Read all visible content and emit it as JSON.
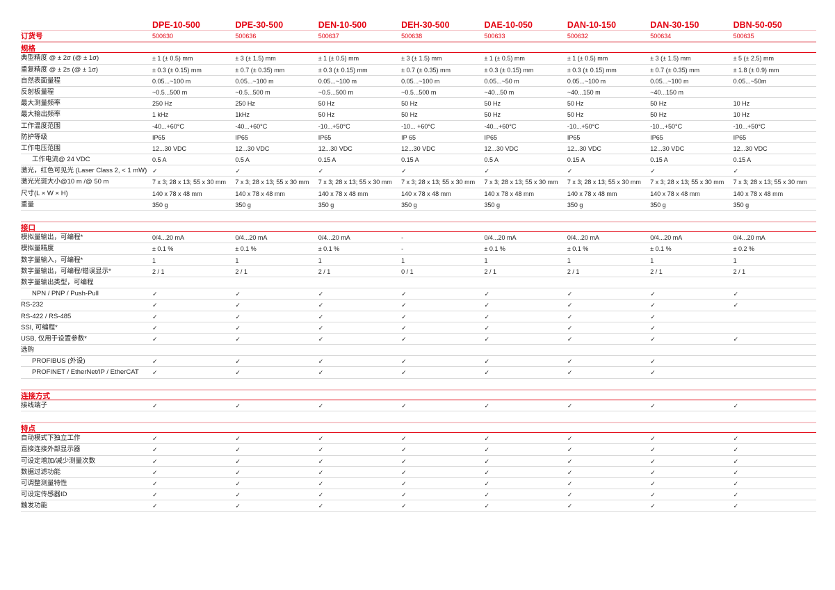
{
  "models": [
    "DPE-10-500",
    "DPE-30-500",
    "DEN-10-500",
    "DEH-30-500",
    "DAE-10-050",
    "DAN-10-150",
    "DAN-30-150",
    "DBN-50-050"
  ],
  "order": {
    "label": "订货号",
    "values": [
      "500630",
      "500636",
      "500637",
      "500638",
      "500633",
      "500632",
      "500634",
      "500635"
    ]
  },
  "sections": [
    {
      "title": "规格",
      "rows": [
        {
          "label": "典型精度 @ ± 2σ (@ ± 1σ)",
          "values": [
            "± 1 (± 0.5) mm",
            "± 3 (± 1.5) mm",
            "± 1 (± 0.5) mm",
            "± 3 (± 1.5) mm",
            "± 1 (± 0.5) mm",
            "± 1 (± 0.5) mm",
            "± 3 (± 1.5) mm",
            "± 5 (± 2.5) mm"
          ]
        },
        {
          "label": "重复精度 @ ± 2s (@ ± 1σ)",
          "values": [
            "± 0.3 (± 0.15) mm",
            "± 0.7 (± 0.35) mm",
            "± 0.3 (± 0.15) mm",
            "± 0.7 (± 0.35) mm",
            "± 0.3 (± 0.15) mm",
            "± 0.3 (± 0.15) mm",
            "± 0.7 (± 0.35) mm",
            "± 1.8 (± 0.9) mm"
          ]
        },
        {
          "label": "自然表面量程",
          "values": [
            "0.05...~100 m",
            "0.05...~100 m",
            "0.05...~100 m",
            "0.05...~100 m",
            "0.05...~50 m",
            "0.05...~100 m",
            "0.05...~100 m",
            "0.05...~50m"
          ]
        },
        {
          "label": "反射板量程",
          "values": [
            " ~0.5...500 m",
            " ~0.5...500 m",
            " ~0.5...500 m",
            " ~0.5...500 m",
            "~40...50 m",
            "~40...150 m",
            "~40...150 m",
            ""
          ]
        },
        {
          "label": "最大测量频率",
          "values": [
            "250 Hz",
            "250 Hz",
            "50 Hz",
            "50 Hz",
            "50 Hz",
            "50 Hz",
            "50 Hz",
            "10 Hz"
          ]
        },
        {
          "label": "最大输出频率",
          "values": [
            "1 kHz",
            "1kHz",
            "50 Hz",
            "50 Hz",
            "50 Hz",
            "50 Hz",
            "50 Hz",
            "10 Hz"
          ]
        },
        {
          "label": "工作温度范围",
          "values": [
            "-40...+60°C",
            "-40...+60°C",
            "-10...+50°C",
            "-10... +60°C",
            "-40...+60°C",
            "-10...+50°C",
            "-10...+50°C",
            "-10...+50°C"
          ]
        },
        {
          "label": "防护等级",
          "values": [
            "IP65",
            "IP65",
            "IP65",
            "IP 65",
            "IP65",
            "IP65",
            "IP65",
            "IP65"
          ]
        },
        {
          "label": "工作电压范围",
          "values": [
            "12...30 VDC",
            "12...30 VDC",
            "12...30 VDC",
            "12...30 VDC",
            "12...30 VDC",
            "12...30 VDC",
            "12...30 VDC",
            "12...30 VDC"
          ]
        },
        {
          "label": "工作电流@ 24 VDC",
          "indent": true,
          "values": [
            "0.5 A",
            "0.5 A",
            "0.15 A",
            "0.15 A",
            "0.5 A",
            "0.15 A",
            "0.15 A",
            "0.15 A"
          ]
        },
        {
          "label": "激光，红色可见光 (Laser Class 2, < 1 mW)",
          "values": [
            "✓",
            "✓",
            "✓",
            "✓",
            "✓",
            "✓",
            "✓",
            "✓"
          ]
        },
        {
          "label": "激光光斑大小@10 m /@ 50 m",
          "values": [
            "7 x 3; 28 x 13; 55 x 30 mm",
            "7 x 3; 28 x 13; 55 x 30 mm",
            "7 x 3; 28 x 13; 55 x 30 mm",
            "7 x 3; 28 x 13; 55 x 30 mm",
            "7 x 3; 28 x 13; 55 x 30 mm",
            "7 x 3; 28 x 13; 55 x 30 mm",
            "7 x 3; 28 x 13; 55 x 30 mm",
            "7 x 3; 28 x 13; 55 x 30 mm"
          ]
        },
        {
          "label": "尺寸(L × W × H)",
          "values": [
            "140 x 78 x 48 mm",
            "140 x 78 x 48 mm",
            "140 x 78 x 48 mm",
            "140 x 78 x 48 mm",
            "140 x 78 x 48 mm",
            "140 x 78 x 48 mm",
            "140 x 78 x 48 mm",
            "140 x 78 x 48 mm"
          ]
        },
        {
          "label": "重量",
          "values": [
            "350 g",
            "350 g",
            "350 g",
            "350 g",
            "350 g",
            "350 g",
            "350 g",
            "350 g"
          ]
        }
      ]
    },
    {
      "title": "接口",
      "rows": [
        {
          "label": "模拟量输出，可编程*",
          "values": [
            "0/4...20 mA",
            "0/4...20 mA",
            "0/4...20 mA",
            "-",
            "0/4...20 mA",
            "0/4...20 mA",
            "0/4...20 mA",
            "0/4...20 mA"
          ]
        },
        {
          "label": "模拟量精度",
          "values": [
            "± 0.1 %",
            "± 0.1 %",
            "± 0.1 %",
            "-",
            "± 0.1 %",
            "± 0.1 %",
            "± 0.1 %",
            "± 0.2 %"
          ]
        },
        {
          "label": "数字量输入，可编程*",
          "values": [
            "1",
            "1",
            "1",
            "1",
            "1",
            "1",
            "1",
            "1"
          ]
        },
        {
          "label": "数字量输出，可编程/错误显示*",
          "values": [
            "2 / 1",
            "2 / 1",
            "2 / 1",
            "0 / 1",
            "2 / 1",
            "2 / 1",
            "2 / 1",
            "2 / 1"
          ]
        },
        {
          "label": "数字量输出类型，可编程",
          "values": [
            "",
            "",
            "",
            "",
            "",
            "",
            "",
            ""
          ]
        },
        {
          "label": "NPN / PNP / Push-Pull",
          "indent": true,
          "values": [
            "✓",
            "✓",
            "✓",
            "✓",
            "✓",
            "✓",
            "✓",
            "✓"
          ]
        },
        {
          "label": "RS-232",
          "values": [
            "✓",
            "✓",
            "✓",
            "✓",
            "✓",
            "✓",
            "✓",
            "✓"
          ]
        },
        {
          "label": "RS-422 / RS-485",
          "values": [
            "✓",
            "✓",
            "✓",
            "✓",
            "✓",
            "✓",
            "✓",
            ""
          ]
        },
        {
          "label": "SSI, 可编程*",
          "values": [
            "✓",
            "✓",
            "✓",
            "✓",
            "✓",
            "✓",
            "✓",
            ""
          ]
        },
        {
          "label": "USB, 仅用于设置参数*",
          "values": [
            "✓",
            "✓",
            "✓",
            "✓",
            "✓",
            "✓",
            "✓",
            "✓"
          ]
        },
        {
          "label": "选购",
          "values": [
            "",
            "",
            "",
            "",
            "",
            "",
            "",
            ""
          ]
        },
        {
          "label": "PROFIBUS (外设)",
          "indent": true,
          "values": [
            "✓",
            "✓",
            "✓",
            "✓",
            "✓",
            "✓",
            "✓",
            ""
          ]
        },
        {
          "label": "PROFINET / EtherNet/IP / EtherCAT",
          "indent": true,
          "values": [
            "✓",
            "✓",
            "✓",
            "✓",
            "✓",
            "✓",
            "✓",
            ""
          ]
        }
      ]
    },
    {
      "title": "连接方式",
      "rows": [
        {
          "label": "接线端子",
          "values": [
            "✓",
            "✓",
            "✓",
            "✓",
            "✓",
            "✓",
            "✓",
            "✓"
          ]
        }
      ]
    },
    {
      "title": "特点",
      "rows": [
        {
          "label": "自动模式下独立工作",
          "values": [
            "✓",
            "✓",
            "✓",
            "✓",
            "✓",
            "✓",
            "✓",
            "✓"
          ]
        },
        {
          "label": "直接连接外部显示器",
          "values": [
            "✓",
            "✓",
            "✓",
            "✓",
            "✓",
            "✓",
            "✓",
            "✓"
          ]
        },
        {
          "label": "可设定增加/减少测量次数",
          "values": [
            "✓",
            "✓",
            "✓",
            "✓",
            "✓",
            "✓",
            "✓",
            "✓"
          ]
        },
        {
          "label": "数据过滤功能",
          "values": [
            "✓",
            "✓",
            "✓",
            "✓",
            "✓",
            "✓",
            "✓",
            "✓"
          ]
        },
        {
          "label": "可调整测量特性",
          "values": [
            "✓",
            "✓",
            "✓",
            "✓",
            "✓",
            "✓",
            "✓",
            "✓"
          ]
        },
        {
          "label": "可设定传感器ID",
          "values": [
            "✓",
            "✓",
            "✓",
            "✓",
            "✓",
            "✓",
            "✓",
            "✓"
          ]
        },
        {
          "label": "触发功能",
          "values": [
            "✓",
            "✓",
            "✓",
            "✓",
            "✓",
            "✓",
            "✓",
            "✓"
          ]
        }
      ]
    }
  ]
}
